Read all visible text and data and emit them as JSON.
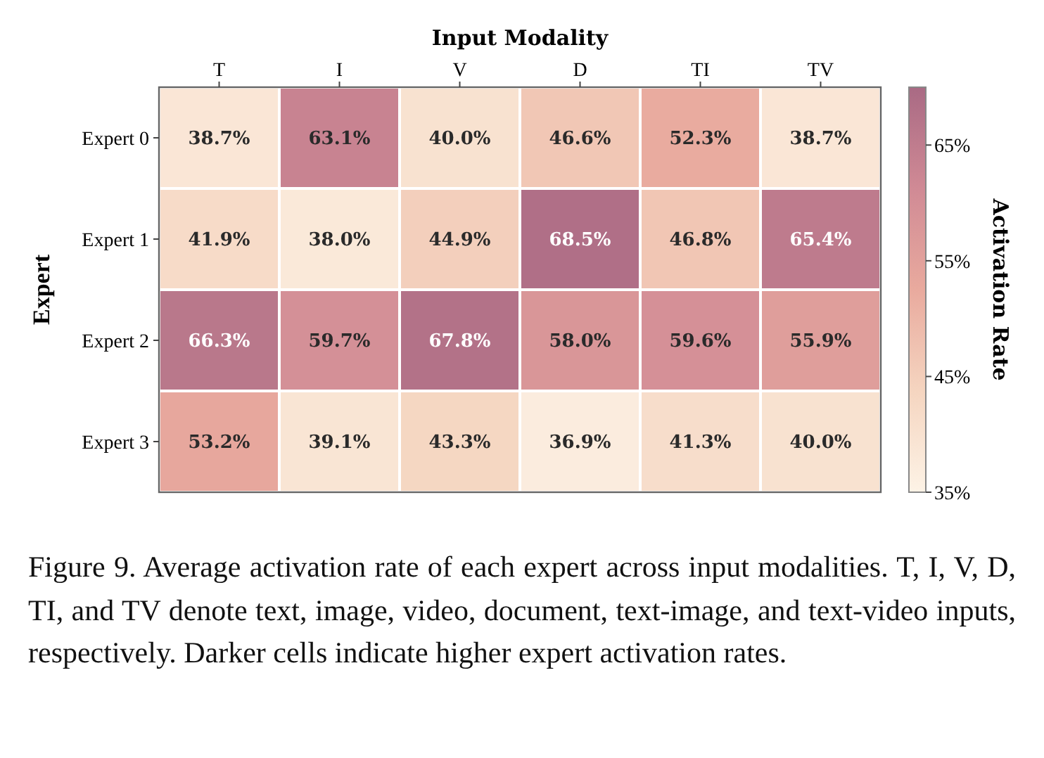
{
  "chart_data": {
    "type": "heatmap",
    "title": "Input Modality",
    "ylabel": "Expert",
    "clabel": "Activation Rate",
    "categories": [
      "T",
      "I",
      "V",
      "D",
      "TI",
      "TV"
    ],
    "y_categories": [
      "Expert 0",
      "Expert 1",
      "Expert 2",
      "Expert 3"
    ],
    "cells": [
      [
        38.7,
        63.1,
        40.0,
        46.6,
        52.3,
        38.7
      ],
      [
        41.9,
        38.0,
        44.9,
        68.5,
        46.8,
        65.4
      ],
      [
        66.3,
        59.7,
        67.8,
        58.0,
        59.6,
        55.9
      ],
      [
        53.2,
        39.1,
        43.3,
        36.9,
        41.3,
        40.0
      ]
    ],
    "cell_labels": [
      [
        "38.7%",
        "63.1%",
        "40.0%",
        "46.6%",
        "52.3%",
        "38.7%"
      ],
      [
        "41.9%",
        "38.0%",
        "44.9%",
        "68.5%",
        "46.8%",
        "65.4%"
      ],
      [
        "66.3%",
        "59.7%",
        "67.8%",
        "58.0%",
        "59.6%",
        "55.9%"
      ],
      [
        "53.2%",
        "39.1%",
        "43.3%",
        "36.9%",
        "41.3%",
        "40.0%"
      ]
    ],
    "clim": [
      35,
      70
    ],
    "cticks": [
      {
        "value": 35,
        "label": "35%"
      },
      {
        "value": 45,
        "label": "45%"
      },
      {
        "value": 55,
        "label": "55%"
      },
      {
        "value": 65,
        "label": "65%"
      }
    ],
    "annotations": [
      "Figure 9.  Average activation rate of each expert across input modalities. T, I, V, D, TI, and TV denote text, image, video, document, text-image, and text-video inputs, respectively. Darker cells indicate higher expert activation rates."
    ]
  }
}
